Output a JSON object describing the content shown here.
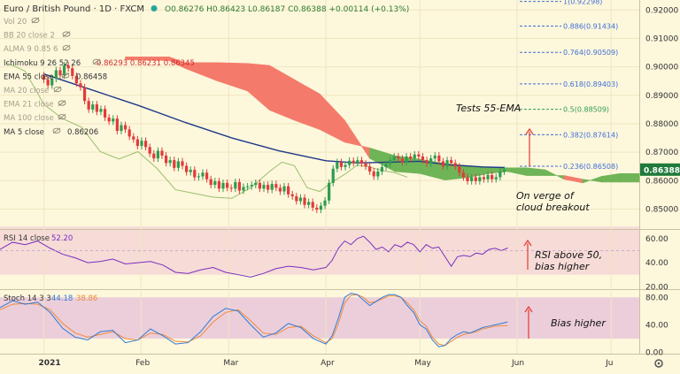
{
  "header": {
    "symbol": "Euro / British Pound · 1D · FXCM",
    "ohlc": "O0.86276 H0.86423 L0.86187 C0.86388 +0.00114 (+0.13%)"
  },
  "indicators_legend": [
    {
      "label": "Vol 20",
      "value": ""
    },
    {
      "label": "BB 20 close 2",
      "value": ""
    },
    {
      "label": "ALMA 9 0.85 6",
      "value": ""
    },
    {
      "label": "Ichimoku 9 26 52 26",
      "value": "0.86293 0.86231 0.86345"
    },
    {
      "label": "EMA 55 close",
      "value": "0.86458"
    },
    {
      "label": "MA 20 close",
      "value": ""
    },
    {
      "label": "EMA 21 close",
      "value": ""
    },
    {
      "label": "MA 100 close",
      "value": ""
    },
    {
      "label": "MA 5 close",
      "value": "0.86206"
    }
  ],
  "fib_levels": [
    {
      "label": "1(0.92298)",
      "price": 0.92298
    },
    {
      "label": "0.886(0.91434)",
      "price": 0.91434
    },
    {
      "label": "0.764(0.90509)",
      "price": 0.90509
    },
    {
      "label": "0.618(0.89403)",
      "price": 0.89403
    },
    {
      "label": "0.5(0.88509)",
      "price": 0.88509
    },
    {
      "label": "0.382(0.87614)",
      "price": 0.87614
    },
    {
      "label": "0.236(0.86508)",
      "price": 0.86508
    }
  ],
  "annotations": {
    "ema": "Tests 55-EMA",
    "cloud_line1": "On verge of",
    "cloud_line2": "cloud breakout",
    "rsi_line1": "RSI above 50,",
    "rsi_line2": "bias higher",
    "stoch": "Bias higher"
  },
  "last_price_label": "0.86388",
  "rsi_legend": {
    "label": "RSI 14 close",
    "value": "52.20"
  },
  "stoch_legend": {
    "label": "Stoch 14 3 3",
    "k": "44.18",
    "d": "38.86"
  },
  "x_axis_labels": [
    {
      "label": "2021",
      "t": 0.0
    },
    {
      "label": "Feb",
      "t": 31.0
    },
    {
      "label": "Mar",
      "t": 59.0
    },
    {
      "label": "Apr",
      "t": 90.0
    },
    {
      "label": "May",
      "t": 120.0
    },
    {
      "label": "Jun",
      "t": 151.0
    },
    {
      "label": "Ju",
      "t": 181.0
    }
  ],
  "colors": {
    "background": "#fdf7dc",
    "up_candle": "#2e9c50",
    "down_candle": "#e23a3a",
    "ema55": "#1e3a8a",
    "cloud_bear": "#f47b6b",
    "cloud_bull": "#6fb456",
    "lagging_span": "#9bbf6e",
    "rsi_line": "#7b2fbe",
    "rsi_band": "#f4d6d6",
    "stoch_k": "#2f7bd6",
    "stoch_d": "#f08a3c",
    "stoch_band": "#e9c9d9",
    "fib_line": "#3f6fd8",
    "fib_05": "#2e9c50",
    "annotation_arrow": "#e53935",
    "price_label_bg": "#1f7a3b"
  },
  "chart_data": [
    {
      "type": "candlestick",
      "title": "Euro / British Pound · 1D · FXCM",
      "ylim": [
        0.843,
        0.9235
      ],
      "y_ticks": [
        0.85,
        0.86,
        0.87,
        0.88,
        0.89,
        0.9,
        0.91,
        0.92
      ],
      "t_range": [
        -14,
        190
      ],
      "x_unit": "days since 2021-01-01",
      "candles_close": [
        0.8955,
        0.8935,
        0.8958,
        0.8988,
        0.897,
        0.9005,
        0.8995,
        0.8968,
        0.8942,
        0.8928,
        0.888,
        0.885,
        0.8868,
        0.8842,
        0.8852,
        0.8822,
        0.8808,
        0.8818,
        0.8775,
        0.8795,
        0.878,
        0.8755,
        0.8745,
        0.8722,
        0.874,
        0.8718,
        0.8695,
        0.8678,
        0.8705,
        0.8688,
        0.8662,
        0.8672,
        0.8645,
        0.8668,
        0.8652,
        0.863,
        0.8638,
        0.8612,
        0.8615,
        0.8628,
        0.8605,
        0.8585,
        0.8598,
        0.8572,
        0.8592,
        0.8575,
        0.8572,
        0.8595,
        0.8565,
        0.8578,
        0.858,
        0.8585,
        0.8592,
        0.8572,
        0.8585,
        0.8568,
        0.8588,
        0.8575,
        0.8562,
        0.858,
        0.8552,
        0.8545,
        0.8528,
        0.854,
        0.8515,
        0.8525,
        0.8505,
        0.8498,
        0.8512,
        0.853,
        0.8592,
        0.8642,
        0.8665,
        0.8648,
        0.8655,
        0.867,
        0.8662,
        0.8672,
        0.866,
        0.865,
        0.8632,
        0.8615,
        0.8632,
        0.8648,
        0.8658,
        0.8672,
        0.8685,
        0.8678,
        0.8665,
        0.8685,
        0.8678,
        0.8692,
        0.8685,
        0.8672,
        0.866,
        0.8678,
        0.8688,
        0.8668,
        0.865,
        0.8672,
        0.8662,
        0.865,
        0.8628,
        0.8612,
        0.8598,
        0.8612,
        0.8598,
        0.8612,
        0.8605,
        0.862,
        0.8605,
        0.8612,
        0.8632,
        0.8638
      ],
      "candles_t_start": 0,
      "candles_t_step": 1.3,
      "ema55": [
        [
          0,
          0.8975
        ],
        [
          15,
          0.892
        ],
        [
          30,
          0.8865
        ],
        [
          45,
          0.8805
        ],
        [
          60,
          0.875
        ],
        [
          75,
          0.8705
        ],
        [
          90,
          0.867
        ],
        [
          100,
          0.8662
        ],
        [
          110,
          0.8665
        ],
        [
          120,
          0.8668
        ],
        [
          130,
          0.8655
        ],
        [
          140,
          0.8648
        ],
        [
          147,
          0.8646
        ]
      ],
      "cloud_span_a": [
        [
          26,
          0.9025
        ],
        [
          40,
          0.9022
        ],
        [
          45,
          0.8995
        ],
        [
          55,
          0.8952
        ],
        [
          65,
          0.8915
        ],
        [
          72,
          0.8848
        ],
        [
          80,
          0.8812
        ],
        [
          88,
          0.878
        ],
        [
          96,
          0.8735
        ],
        [
          104,
          0.8715
        ],
        [
          112,
          0.8688
        ],
        [
          120,
          0.8675
        ],
        [
          128,
          0.866
        ],
        [
          136,
          0.8652
        ],
        [
          142,
          0.8648
        ],
        [
          148,
          0.8645
        ],
        [
          154,
          0.8645
        ],
        [
          160,
          0.8638
        ],
        [
          166,
          0.8605
        ],
        [
          172,
          0.8592
        ],
        [
          178,
          0.8615
        ],
        [
          184,
          0.8625
        ],
        [
          190,
          0.8625
        ]
      ],
      "cloud_span_b": [
        [
          26,
          0.9035
        ],
        [
          40,
          0.9035
        ],
        [
          45,
          0.9015
        ],
        [
          55,
          0.9015
        ],
        [
          65,
          0.9012
        ],
        [
          72,
          0.9005
        ],
        [
          80,
          0.8955
        ],
        [
          88,
          0.8905
        ],
        [
          96,
          0.8812
        ],
        [
          104,
          0.8678
        ],
        [
          112,
          0.8632
        ],
        [
          120,
          0.8625
        ],
        [
          128,
          0.8602
        ],
        [
          136,
          0.8612
        ],
        [
          142,
          0.8625
        ],
        [
          148,
          0.8632
        ],
        [
          154,
          0.8618
        ],
        [
          160,
          0.8618
        ],
        [
          166,
          0.8618
        ],
        [
          172,
          0.8605
        ],
        [
          178,
          0.8595
        ],
        [
          184,
          0.8595
        ],
        [
          190,
          0.8595
        ]
      ],
      "lagging_span": [
        [
          -12,
          0.9015
        ],
        [
          -6,
          0.8985
        ],
        [
          0,
          0.8868
        ],
        [
          6,
          0.8818
        ],
        [
          12,
          0.8788
        ],
        [
          18,
          0.8702
        ],
        [
          24,
          0.8676
        ],
        [
          30,
          0.8702
        ],
        [
          36,
          0.8644
        ],
        [
          42,
          0.8568
        ],
        [
          48,
          0.8555
        ],
        [
          54,
          0.8542
        ],
        [
          60,
          0.8538
        ],
        [
          66,
          0.8575
        ],
        [
          72,
          0.8632
        ],
        [
          76,
          0.8665
        ],
        [
          80,
          0.8652
        ],
        [
          84,
          0.8575
        ],
        [
          88,
          0.8562
        ],
        [
          92,
          0.8595
        ],
        [
          96,
          0.8622
        ],
        [
          100,
          0.8655
        ],
        [
          104,
          0.8648
        ],
        [
          108,
          0.8635
        ],
        [
          112,
          0.8628
        ],
        [
          116,
          0.8612
        ]
      ],
      "y_axis_label_price": 0.86388
    },
    {
      "type": "line",
      "title": "RSI 14 close",
      "ylim": [
        18,
        68
      ],
      "y_ticks": [
        20.0,
        40.0,
        60.0
      ],
      "band": [
        30,
        70
      ],
      "series": [
        {
          "name": "RSI 14 close",
          "x": [
            -14,
            -10,
            -6,
            -2,
            2,
            6,
            10,
            14,
            18,
            22,
            26,
            30,
            34,
            38,
            42,
            46,
            50,
            54,
            58,
            62,
            66,
            70,
            74,
            78,
            82,
            86,
            90,
            92,
            94,
            96,
            98,
            100,
            102,
            104,
            106,
            108,
            110,
            112,
            114,
            116,
            118,
            120,
            122,
            124,
            126,
            128,
            130,
            132,
            134,
            136,
            138,
            140,
            142,
            144,
            146,
            148
          ],
          "values": [
            51,
            57,
            55,
            58,
            52,
            47,
            44,
            40,
            41,
            43,
            39,
            40,
            41,
            38,
            32,
            31,
            34,
            36,
            32,
            30,
            28,
            31,
            35,
            37,
            36,
            34,
            36,
            42,
            52,
            58,
            55,
            60,
            62,
            57,
            51,
            53,
            49,
            55,
            53,
            57,
            55,
            49,
            55,
            52,
            53,
            45,
            37,
            45,
            46,
            45,
            48,
            47,
            51,
            52,
            50,
            52.2
          ]
        }
      ]
    },
    {
      "type": "line",
      "title": "Stoch 14 3 3",
      "ylim": [
        -2,
        92
      ],
      "y_ticks": [
        0.0,
        40.0,
        80.0
      ],
      "band": [
        20,
        80
      ],
      "series": [
        {
          "name": "%K",
          "x": [
            -14,
            -10,
            -6,
            -2,
            2,
            6,
            10,
            14,
            18,
            22,
            26,
            30,
            34,
            38,
            42,
            46,
            50,
            54,
            58,
            62,
            66,
            70,
            74,
            78,
            82,
            86,
            90,
            92,
            94,
            96,
            98,
            100,
            102,
            104,
            106,
            108,
            110,
            112,
            114,
            116,
            118,
            120,
            122,
            124,
            126,
            128,
            130,
            132,
            134,
            136,
            138,
            140,
            142,
            144,
            146,
            148
          ],
          "values": [
            65,
            75,
            70,
            73,
            58,
            35,
            22,
            18,
            30,
            32,
            14,
            18,
            34,
            24,
            12,
            14,
            30,
            52,
            64,
            60,
            40,
            22,
            28,
            42,
            36,
            20,
            12,
            24,
            50,
            80,
            86,
            84,
            76,
            68,
            74,
            80,
            84,
            84,
            80,
            68,
            58,
            40,
            34,
            18,
            8,
            10,
            20,
            26,
            30,
            28,
            32,
            36,
            38,
            40,
            42,
            44.18
          ]
        },
        {
          "name": "%D",
          "x": [
            -14,
            -10,
            -6,
            -2,
            2,
            6,
            10,
            14,
            18,
            22,
            26,
            30,
            34,
            38,
            42,
            46,
            50,
            54,
            58,
            62,
            66,
            70,
            74,
            78,
            82,
            86,
            90,
            92,
            94,
            96,
            98,
            100,
            102,
            104,
            106,
            108,
            110,
            112,
            114,
            116,
            118,
            120,
            122,
            124,
            126,
            128,
            130,
            132,
            134,
            136,
            138,
            140,
            142,
            144,
            146,
            148
          ],
          "values": [
            62,
            70,
            71,
            70,
            62,
            42,
            28,
            22,
            26,
            30,
            20,
            18,
            28,
            26,
            16,
            15,
            24,
            44,
            58,
            62,
            46,
            28,
            26,
            36,
            38,
            24,
            14,
            20,
            42,
            72,
            83,
            84,
            80,
            72,
            74,
            78,
            82,
            82,
            80,
            72,
            62,
            46,
            38,
            22,
            12,
            10,
            16,
            22,
            26,
            28,
            30,
            34,
            36,
            38,
            38.5,
            38.86
          ]
        }
      ]
    }
  ]
}
